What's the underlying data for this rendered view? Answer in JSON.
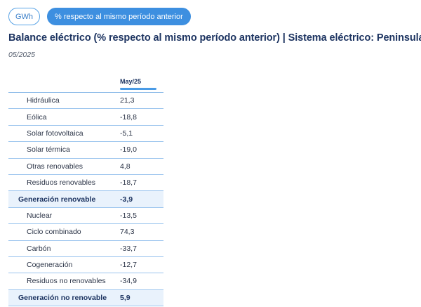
{
  "toggles": {
    "unit_label": "GWh",
    "percent_label": "% respecto al mismo período anterior"
  },
  "title": "Balance eléctrico (% respecto al mismo período anterior) | Sistema eléctrico: Peninsular",
  "period": "05/2025",
  "table": {
    "column_header": "May/25",
    "rows": [
      {
        "label": "Hidráulica",
        "value": "21,3",
        "total": false
      },
      {
        "label": "Eólica",
        "value": "-18,8",
        "total": false
      },
      {
        "label": "Solar fotovoltaica",
        "value": "-5,1",
        "total": false
      },
      {
        "label": "Solar térmica",
        "value": "-19,0",
        "total": false
      },
      {
        "label": "Otras renovables",
        "value": "4,8",
        "total": false
      },
      {
        "label": "Residuos renovables",
        "value": "-18,7",
        "total": false
      },
      {
        "label": "Generación renovable",
        "value": "-3,9",
        "total": true
      },
      {
        "label": "Nuclear",
        "value": "-13,5",
        "total": false
      },
      {
        "label": "Ciclo combinado",
        "value": "74,3",
        "total": false
      },
      {
        "label": "Carbón",
        "value": "-33,7",
        "total": false
      },
      {
        "label": "Cogeneración",
        "value": "-12,7",
        "total": false
      },
      {
        "label": "Residuos no renovables",
        "value": "-34,9",
        "total": false
      },
      {
        "label": "Generación no renovable",
        "value": "5,9",
        "total": true
      }
    ]
  }
}
